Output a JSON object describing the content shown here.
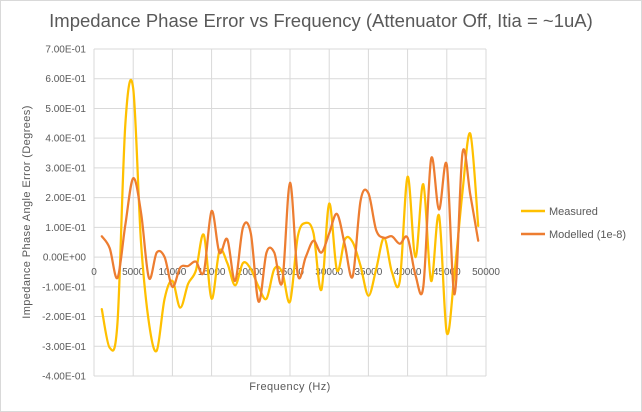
{
  "chart_data": {
    "type": "line",
    "title": "Impedance Phase Error vs Frequency (Attenuator Off, Itia = ~1uA)",
    "xlabel": "Frequency (Hz)",
    "ylabel": "Impedance Phase Angle Error (Degrees)",
    "xlim": [
      0,
      50000
    ],
    "ylim": [
      -0.4,
      0.7
    ],
    "grid": true,
    "legend_position": "right",
    "x_ticks": [
      0,
      5000,
      10000,
      15000,
      20000,
      25000,
      30000,
      35000,
      40000,
      45000,
      50000
    ],
    "x_tick_labels": [
      "0",
      "5000",
      "10000",
      "15000",
      "20000",
      "25000",
      "30000",
      "35000",
      "40000",
      "45000",
      "50000"
    ],
    "y_ticks": [
      0.7,
      0.6,
      0.5,
      0.4,
      0.3,
      0.2,
      0.1,
      0.0,
      -0.1,
      -0.2,
      -0.3,
      -0.4
    ],
    "y_tick_labels": [
      "7.00E-01",
      "6.00E-01",
      "5.00E-01",
      "4.00E-01",
      "3.00E-01",
      "2.00E-01",
      "1.00E-01",
      "0.00E+00",
      "-1.00E-01",
      "-2.00E-01",
      "-3.00E-01",
      "-4.00E-01"
    ],
    "x": [
      1000,
      2000,
      3000,
      4000,
      5000,
      6000,
      7000,
      8000,
      9000,
      10000,
      11000,
      12000,
      13000,
      14000,
      15000,
      16000,
      17000,
      18000,
      19000,
      20000,
      21000,
      22000,
      23000,
      24000,
      25000,
      26000,
      27000,
      28000,
      29000,
      30000,
      31000,
      32000,
      33000,
      34000,
      35000,
      36000,
      37000,
      38000,
      39000,
      40000,
      41000,
      42000,
      43000,
      44000,
      45000,
      46000,
      47000,
      48000,
      49000
    ],
    "series": [
      {
        "name": "Measured",
        "color": "#FFC000",
        "values": [
          -0.175,
          -0.305,
          -0.22,
          0.45,
          0.567,
          0.05,
          -0.22,
          -0.315,
          -0.14,
          -0.08,
          -0.17,
          -0.09,
          -0.045,
          0.075,
          -0.14,
          0.02,
          -0.02,
          -0.095,
          -0.02,
          -0.04,
          -0.1,
          -0.14,
          -0.04,
          -0.05,
          -0.15,
          0.07,
          0.115,
          0.08,
          -0.11,
          0.18,
          -0.045,
          0.06,
          0.05,
          -0.03,
          -0.13,
          -0.04,
          0.065,
          -0.05,
          -0.08,
          0.27,
          0.0,
          0.245,
          -0.08,
          0.14,
          -0.255,
          -0.05,
          0.22,
          0.415,
          0.105
        ]
      },
      {
        "name": "Modelled (1e-8)",
        "color": "#ED7D31",
        "values": [
          0.07,
          0.03,
          -0.07,
          0.11,
          0.265,
          0.15,
          -0.07,
          0.015,
          0.0,
          -0.1,
          -0.035,
          -0.03,
          -0.015,
          -0.05,
          0.155,
          0.015,
          0.06,
          -0.08,
          0.1,
          0.08,
          -0.15,
          0.015,
          0.015,
          -0.085,
          0.25,
          -0.06,
          0.0,
          0.055,
          0.015,
          0.08,
          0.145,
          0.04,
          -0.065,
          0.19,
          0.215,
          0.09,
          0.065,
          0.07,
          0.045,
          0.065,
          -0.06,
          -0.1,
          0.33,
          0.16,
          0.31,
          -0.125,
          0.35,
          0.21,
          0.055
        ]
      }
    ]
  },
  "colors": {
    "gridline": "#d9d9d9",
    "text": "#595959"
  }
}
